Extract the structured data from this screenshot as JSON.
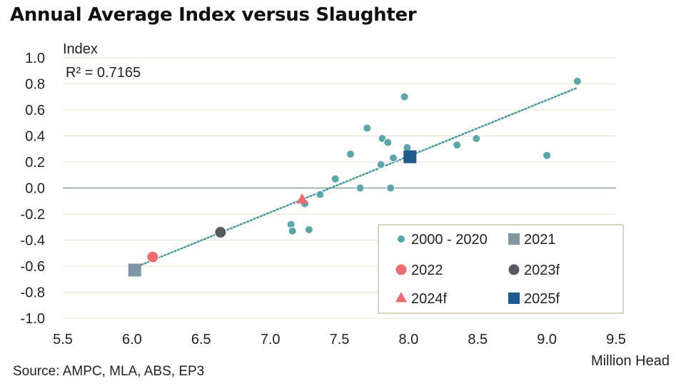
{
  "title": "Annual Average Index versus Slaughter",
  "source": "Source: AMPC, MLA, ABS, EP3",
  "chart_data": {
    "type": "scatter",
    "title": "Annual Average Index versus Slaughter",
    "xlabel": "Million Head",
    "ylabel": "Index",
    "annotation": "R² = 0.7165",
    "xlim": [
      5.5,
      9.5
    ],
    "ylim": [
      -1.0,
      1.0
    ],
    "x_ticks": [
      "5.5",
      "6.0",
      "6.5",
      "7.0",
      "7.5",
      "8.0",
      "8.5",
      "9.0",
      "9.5"
    ],
    "y_ticks": [
      "1.0",
      "0.8",
      "0.6",
      "0.4",
      "0.2",
      "0.0",
      "-0.2",
      "-0.4",
      "-0.6",
      "-0.8",
      "-1.0"
    ],
    "grid": true,
    "legend_position": "bottom-right",
    "trendline": {
      "style": "dotted",
      "color": "#4a9aa0",
      "from": [
        6.02,
        -0.61
      ],
      "to": [
        9.22,
        0.77
      ]
    },
    "series": [
      {
        "name": "2000 - 2020",
        "marker": "circle",
        "color": "#5aa6ab",
        "points": [
          [
            7.15,
            -0.28
          ],
          [
            7.16,
            -0.33
          ],
          [
            7.25,
            -0.12
          ],
          [
            7.28,
            -0.32
          ],
          [
            7.36,
            -0.05
          ],
          [
            7.47,
            0.07
          ],
          [
            7.58,
            0.26
          ],
          [
            7.65,
            0.0
          ],
          [
            7.7,
            0.46
          ],
          [
            7.8,
            0.18
          ],
          [
            7.81,
            0.38
          ],
          [
            7.85,
            0.35
          ],
          [
            7.87,
            0.0
          ],
          [
            7.89,
            0.23
          ],
          [
            7.97,
            0.7
          ],
          [
            7.99,
            0.31
          ],
          [
            8.35,
            0.33
          ],
          [
            8.49,
            0.38
          ],
          [
            9.0,
            0.25
          ],
          [
            9.22,
            0.82
          ]
        ]
      },
      {
        "name": "2021",
        "marker": "square",
        "color": "#7f96a3",
        "points": [
          [
            6.02,
            -0.63
          ]
        ]
      },
      {
        "name": "2022",
        "marker": "circle",
        "color": "#ee6b6e",
        "points": [
          [
            6.15,
            -0.53
          ]
        ]
      },
      {
        "name": "2023f",
        "marker": "circle",
        "color": "#555b60",
        "points": [
          [
            6.64,
            -0.34
          ]
        ]
      },
      {
        "name": "2024f",
        "marker": "triangle",
        "color": "#ee6b6e",
        "points": [
          [
            7.23,
            -0.09
          ]
        ]
      },
      {
        "name": "2025f",
        "marker": "square",
        "color": "#1f5a8e",
        "points": [
          [
            8.01,
            0.24
          ]
        ]
      }
    ]
  }
}
